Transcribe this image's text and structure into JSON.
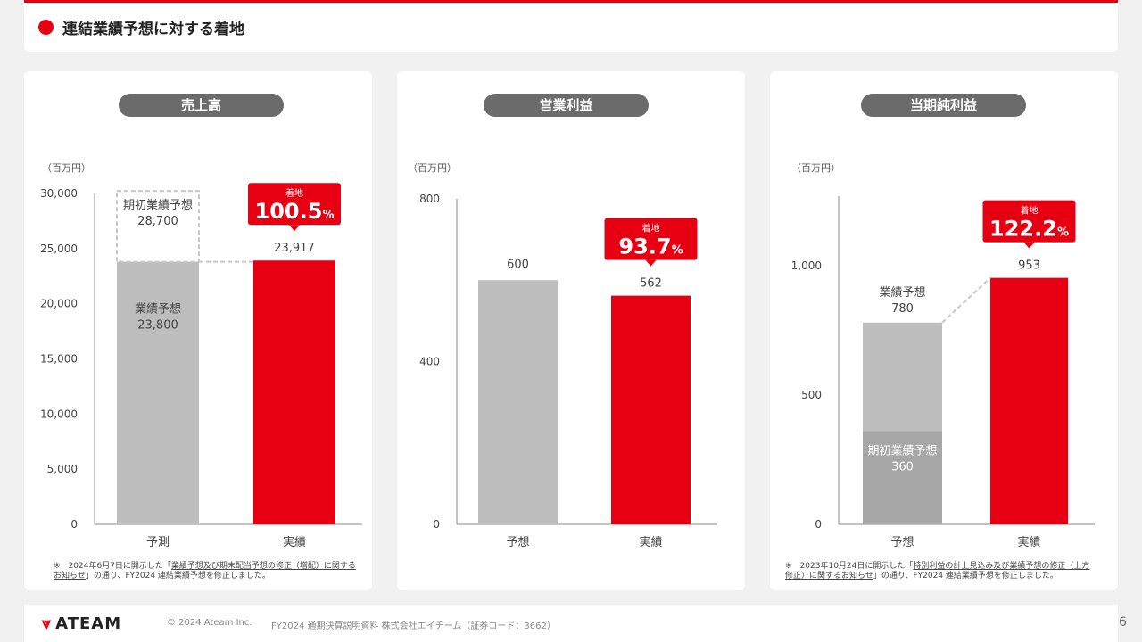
{
  "header": {
    "title": "連結業績予想に対する着地"
  },
  "colors": {
    "accent": "#e60012",
    "forecast": "#bdbdbd",
    "initial": "#a6a6a6"
  },
  "panels": [
    {
      "title": "売上高",
      "unit": "（百万円）",
      "note_mark": "※",
      "note": [
        "2024年6月7日に開示した「",
        "業績予想及び期末配当予想の修正（増配）に関する",
        "お知らせ",
        "」の通り、FY2024 連結業績予想を修正しました。"
      ]
    },
    {
      "title": "営業利益",
      "unit": "（百万円）"
    },
    {
      "title": "当期純利益",
      "unit": "（百万円）",
      "note_mark": "※",
      "note": [
        "2023年10月24日に開示した「",
        "特別利益の計上見込み及び業績予想の修正（上方",
        "修正）に関するお知らせ",
        "」の通り、FY2024 連結業績予想を修正しました。"
      ]
    }
  ],
  "chart_data": [
    {
      "type": "bar",
      "title": "売上高",
      "ylabel": "（百万円）",
      "ylim": [
        0,
        30000
      ],
      "yticks": [
        0,
        5000,
        10000,
        15000,
        20000,
        25000,
        30000
      ],
      "ytick_labels": [
        "0",
        "5,000",
        "10,000",
        "15,000",
        "20,000",
        "25,000",
        "30,000"
      ],
      "categories": [
        "予測",
        "実績"
      ],
      "forecast": {
        "label": "業績予想",
        "value": 23800,
        "value_label": "23,800"
      },
      "initial_forecast": {
        "label": "期初業績予想",
        "value": 28700,
        "value_label": "28,700"
      },
      "actual": {
        "value": 23917,
        "value_label": "23,917"
      },
      "achievement": {
        "label": "着地",
        "value": "100.5",
        "unit": "%"
      }
    },
    {
      "type": "bar",
      "title": "営業利益",
      "ylabel": "（百万円）",
      "ylim": [
        0,
        800
      ],
      "yticks": [
        0,
        400,
        800
      ],
      "ytick_labels": [
        "0",
        "400",
        "800"
      ],
      "categories": [
        "予想",
        "実績"
      ],
      "forecast": {
        "value": 600,
        "value_label": "600"
      },
      "actual": {
        "value": 562,
        "value_label": "562"
      },
      "achievement": {
        "label": "着地",
        "value": "93.7",
        "unit": "%"
      }
    },
    {
      "type": "bar",
      "title": "当期純利益",
      "ylabel": "（百万円）",
      "ylim": [
        0,
        1200
      ],
      "yticks": [
        0,
        500,
        1000
      ],
      "ytick_labels": [
        "0",
        "500",
        "1,000"
      ],
      "categories": [
        "予想",
        "実績"
      ],
      "forecast": {
        "label": "業績予想",
        "value": 780,
        "value_label": "780"
      },
      "initial_forecast": {
        "label": "期初業績予想",
        "value": 360,
        "value_label": "360"
      },
      "actual": {
        "value": 953,
        "value_label": "953"
      },
      "achievement": {
        "label": "着地",
        "value": "122.2",
        "unit": "%"
      }
    }
  ],
  "footer": {
    "logo_mark": "⩔",
    "logo_text": "ATEAM",
    "copyright": "© 2024 Ateam Inc.",
    "document": "FY2024 通期決算説明資料 株式会社エイチーム（証券コード：3662）",
    "page": "6"
  }
}
